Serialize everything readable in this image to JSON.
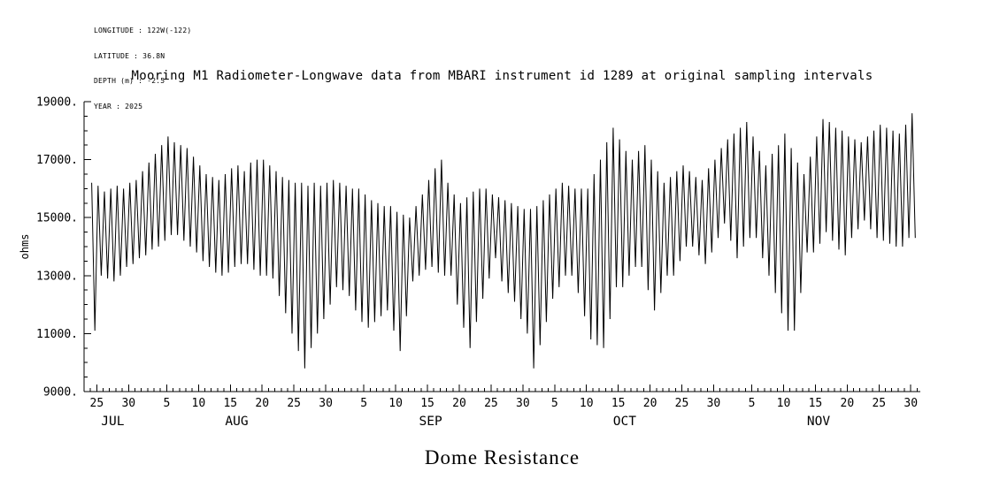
{
  "meta": {
    "lines": [
      "LONGITUDE : 122W(-122)",
      "LATITUDE : 36.8N",
      "DEPTH (m) : -2.5",
      "YEAR : 2025"
    ]
  },
  "chart_data": {
    "type": "line",
    "title": "Mooring M1 Radiometer-Longwave data from MBARI instrument id 1289 at original sampling intervals",
    "xlabel": "Dome Resistance",
    "ylabel": "ohms",
    "line_color": "#000000",
    "background": "#ffffff",
    "grid": false,
    "legend": false,
    "ylim": [
      9000,
      19000
    ],
    "y_major_ticks": [
      9000,
      11000,
      13000,
      15000,
      17000,
      19000
    ],
    "y_tick_labels": [
      "9000.",
      "11000.",
      "13000.",
      "15000.",
      "17000.",
      "19000."
    ],
    "y_minor_step": 500,
    "x_domain": [
      0,
      131.5
    ],
    "x_axis_note": "days, Jul 24 through Nov 30; diurnal oscillation shown as daily high/low envelope",
    "x_minor_step_days": 1,
    "x_major_ticks": [
      {
        "day": 2,
        "label": "25"
      },
      {
        "day": 7,
        "label": "30"
      },
      {
        "day": 13,
        "label": "5"
      },
      {
        "day": 18,
        "label": "10"
      },
      {
        "day": 23,
        "label": "15"
      },
      {
        "day": 28,
        "label": "20"
      },
      {
        "day": 33,
        "label": "25"
      },
      {
        "day": 38,
        "label": "30"
      },
      {
        "day": 44,
        "label": "5"
      },
      {
        "day": 49,
        "label": "10"
      },
      {
        "day": 54,
        "label": "15"
      },
      {
        "day": 59,
        "label": "20"
      },
      {
        "day": 64,
        "label": "25"
      },
      {
        "day": 69,
        "label": "30"
      },
      {
        "day": 74,
        "label": "5"
      },
      {
        "day": 79,
        "label": "10"
      },
      {
        "day": 84,
        "label": "15"
      },
      {
        "day": 89,
        "label": "20"
      },
      {
        "day": 94,
        "label": "25"
      },
      {
        "day": 99,
        "label": "30"
      },
      {
        "day": 105,
        "label": "5"
      },
      {
        "day": 110,
        "label": "10"
      },
      {
        "day": 115,
        "label": "15"
      },
      {
        "day": 120,
        "label": "20"
      },
      {
        "day": 125,
        "label": "25"
      },
      {
        "day": 130,
        "label": "30"
      }
    ],
    "month_labels": [
      {
        "label": "JUL",
        "day": 4.5
      },
      {
        "label": "AUG",
        "day": 24
      },
      {
        "label": "SEP",
        "day": 54.5
      },
      {
        "label": "OCT",
        "day": 85
      },
      {
        "label": "NOV",
        "day": 115.5
      }
    ],
    "series": [
      {
        "name": "dome_resistance_ohms",
        "first_day": 1,
        "samples_per_day": 2,
        "day_high": [
          16200,
          16100,
          15900,
          16000,
          16100,
          16000,
          16200,
          16300,
          16600,
          16900,
          17200,
          17500,
          17800,
          17600,
          17500,
          17400,
          17100,
          16800,
          16500,
          16400,
          16300,
          16500,
          16700,
          16800,
          16600,
          16900,
          17000,
          17000,
          16800,
          16600,
          16400,
          16300,
          16200,
          16200,
          16100,
          16200,
          16100,
          16200,
          16300,
          16200,
          16100,
          16000,
          16000,
          15800,
          15600,
          15500,
          15400,
          15400,
          15200,
          15100,
          15000,
          15400,
          15800,
          16300,
          16700,
          17000,
          16200,
          15800,
          15500,
          15700,
          15900,
          16000,
          16000,
          15800,
          15700,
          15600,
          15500,
          15400,
          15300,
          15300,
          15400,
          15600,
          15800,
          16000,
          16200,
          16100,
          16000,
          16000,
          16000,
          16500,
          17000,
          17600,
          18100,
          17700,
          17300,
          17000,
          17300,
          17500,
          17000,
          16600,
          16200,
          16400,
          16600,
          16800,
          16600,
          16400,
          16300,
          16700,
          17000,
          17400,
          17700,
          17900,
          18100,
          18300,
          17800,
          17300,
          16800,
          17200,
          17500,
          17900,
          17400,
          16900,
          16500,
          17100,
          17800,
          18400,
          18300,
          18100,
          18000,
          17800,
          17700,
          17600,
          17800,
          18000,
          18200,
          18100,
          18000,
          17900,
          18200,
          18600
        ],
        "day_low": [
          11100,
          13000,
          12900,
          12800,
          13000,
          13300,
          13400,
          13600,
          13700,
          13900,
          14000,
          14200,
          14400,
          14400,
          14200,
          14000,
          13800,
          13500,
          13300,
          13100,
          13000,
          13100,
          13300,
          13400,
          13400,
          13200,
          13000,
          13000,
          12900,
          12300,
          11700,
          11000,
          10400,
          9800,
          10500,
          11000,
          11500,
          12000,
          12600,
          12500,
          12300,
          11800,
          11400,
          11200,
          11400,
          11600,
          11800,
          11100,
          10400,
          11600,
          12800,
          13000,
          13200,
          13300,
          13100,
          13000,
          13000,
          12000,
          11200,
          10500,
          11400,
          12200,
          12900,
          13600,
          12800,
          12400,
          12100,
          11500,
          11000,
          9800,
          10600,
          11400,
          12200,
          12600,
          13000,
          13000,
          12400,
          11600,
          10800,
          10600,
          10500,
          11500,
          12600,
          12600,
          13000,
          13300,
          13300,
          12500,
          11800,
          12400,
          13000,
          13000,
          13500,
          14000,
          14000,
          13700,
          13400,
          13800,
          14300,
          14800,
          14200,
          13600,
          14000,
          14300,
          14300,
          13600,
          13000,
          12400,
          11700,
          11100,
          11100,
          12400,
          13800,
          13800,
          14100,
          14500,
          14200,
          13900,
          13700,
          14300,
          14600,
          14900,
          14600,
          14300,
          14200,
          14100,
          14000,
          14000,
          14300,
          14300
        ]
      }
    ]
  }
}
